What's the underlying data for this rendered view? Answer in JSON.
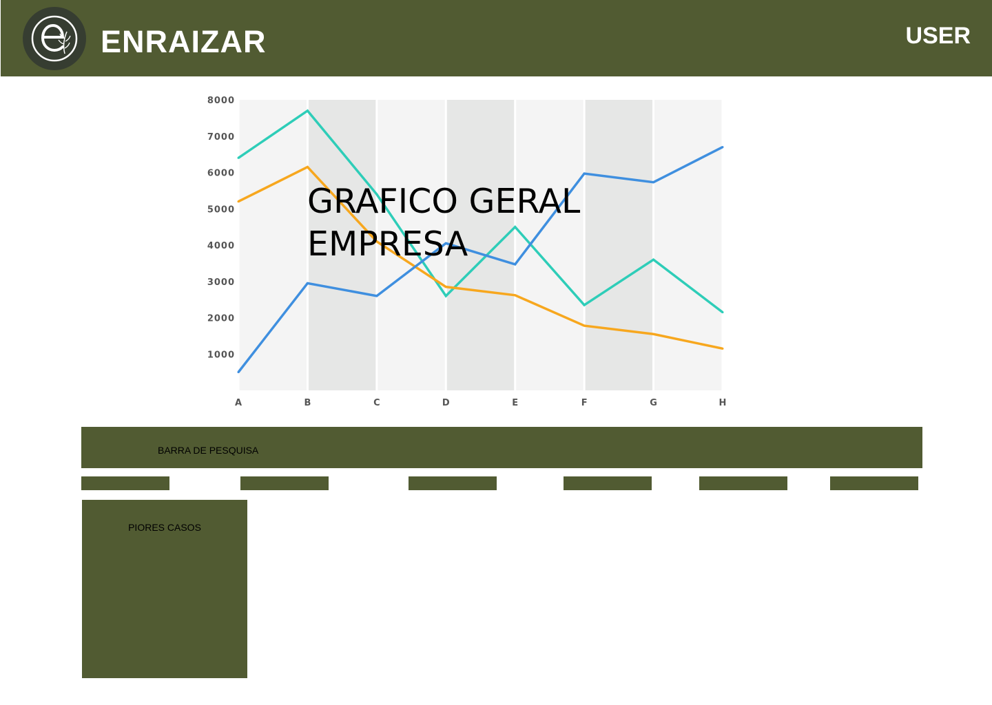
{
  "header": {
    "brand": "ENRAIZAR",
    "user_label": "USER"
  },
  "logo": {
    "icon": "leaf-e-logo-icon"
  },
  "colors": {
    "header_bg": "#515b32",
    "logo_bg": "#363d31",
    "panel_bg": "#515b32",
    "grid_light": "#f4f4f4",
    "grid_dark": "#e6e7e6"
  },
  "chart_data": {
    "type": "line",
    "title": "GRAFICO GERAL\nEMPRESA",
    "categories": [
      "A",
      "B",
      "C",
      "D",
      "E",
      "F",
      "G",
      "H"
    ],
    "y_ticks": [
      1000,
      2000,
      3000,
      4000,
      5000,
      6000,
      7000,
      8000
    ],
    "ylim": [
      0,
      8000
    ],
    "series": [
      {
        "color": "#2ecdb8",
        "values": [
          6400,
          7700,
          5400,
          2600,
          4500,
          2350,
          3600,
          2150
        ]
      },
      {
        "color": "#f7a71e",
        "values": [
          5200,
          6150,
          4100,
          2850,
          2620,
          1780,
          1550,
          1150
        ]
      },
      {
        "color": "#3f8fdf",
        "values": [
          500,
          2950,
          2600,
          4050,
          3470,
          5970,
          5730,
          6700
        ]
      }
    ],
    "grid": true,
    "legend": "none"
  },
  "search": {
    "label": "BARRA DE PESQUISA"
  },
  "filters": [
    {
      "label": ""
    },
    {
      "label": ""
    },
    {
      "label": ""
    },
    {
      "label": ""
    },
    {
      "label": ""
    },
    {
      "label": ""
    }
  ],
  "worst_cases": {
    "title": "PIORES CASOS"
  }
}
